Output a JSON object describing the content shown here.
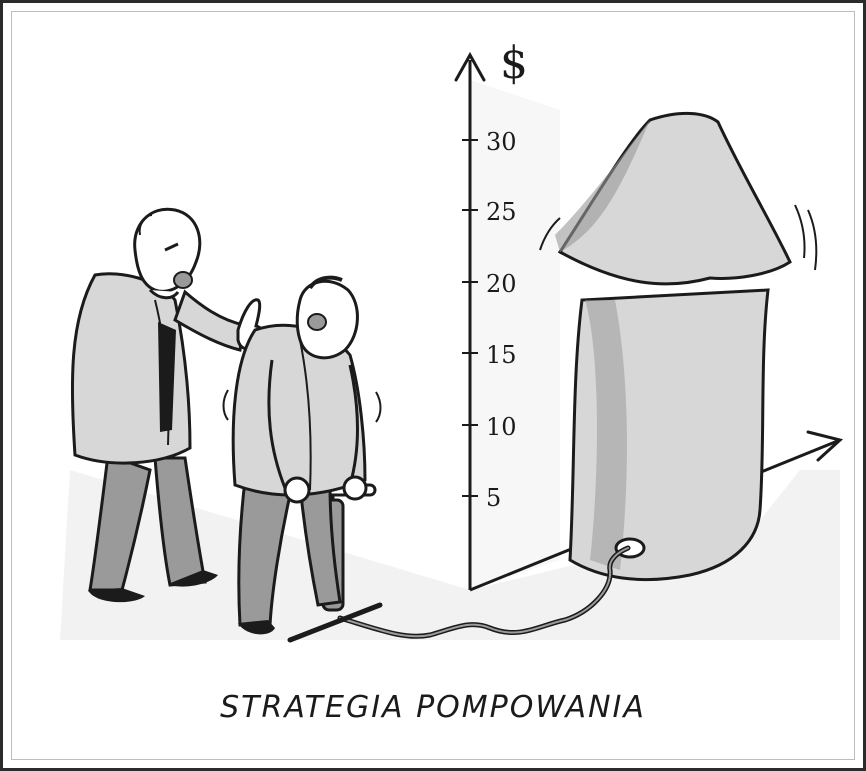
{
  "caption": "STRATEGIA POMPOWANIA",
  "axis": {
    "unit": "$",
    "ticks": [
      "30",
      "25",
      "20",
      "15",
      "10",
      "5"
    ]
  },
  "colors": {
    "ink": "#1b1b1b",
    "wash": "#bdbdbd",
    "arrow_fill": "#d7d7d7",
    "arrow_shadow": "#9a9a9a"
  }
}
